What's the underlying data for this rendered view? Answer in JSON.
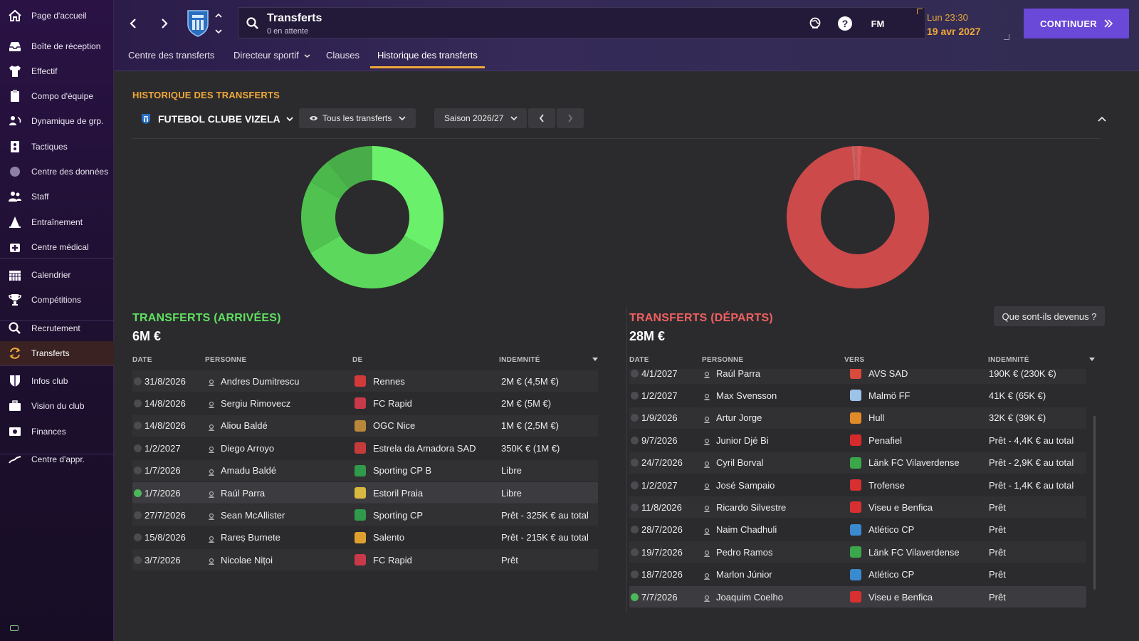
{
  "sidebar": {
    "items": [
      {
        "label": "Page d'accueil",
        "icon": "home-icon"
      },
      {
        "label": "Boîte de réception",
        "icon": "inbox-icon"
      },
      {
        "label": "Effectif",
        "icon": "shirt-icon"
      },
      {
        "label": "Compo d'équipe",
        "icon": "clipboard-icon"
      },
      {
        "label": "Dynamique de grp.",
        "icon": "people-cycle-icon"
      },
      {
        "label": "Tactiques",
        "icon": "tactics-icon"
      },
      {
        "label": "Centre des données",
        "icon": "data-icon"
      },
      {
        "label": "Staff",
        "icon": "staff-icon"
      },
      {
        "label": "Entraînement",
        "icon": "cone-icon"
      },
      {
        "label": "Centre médical",
        "icon": "medical-icon"
      },
      {
        "label": "Calendrier",
        "icon": "calendar-icon"
      },
      {
        "label": "Compétitions",
        "icon": "trophy-icon"
      },
      {
        "label": "Recrutement",
        "icon": "search-icon"
      },
      {
        "label": "Transferts",
        "icon": "transfer-icon"
      },
      {
        "label": "Infos club",
        "icon": "shield-icon"
      },
      {
        "label": "Vision du club",
        "icon": "briefcase-icon"
      },
      {
        "label": "Finances",
        "icon": "money-icon"
      },
      {
        "label": "Centre d'appr.",
        "icon": "graph-icon"
      }
    ]
  },
  "header": {
    "search_title": "Transferts",
    "search_sub": "0 en attente",
    "fm_label": "FM",
    "time": "Lun 23:30",
    "date": "19 avr 2027",
    "continue_label": "CONTINUER",
    "tabs": [
      "Centre des transferts",
      "Directeur sportif",
      "Clauses",
      "Historique des transferts"
    ]
  },
  "main": {
    "section_title": "HISTORIQUE DES TRANSFERTS",
    "club_name": "FUTEBOL CLUBE VIZELA",
    "filter_label": "Tous les transferts",
    "season_label": "Saison 2026/27",
    "what_became_label": "Que sont-ils devenus ?"
  },
  "arrivals": {
    "title": "TRANSFERTS (ARRIVÉES)",
    "total": "6M €",
    "headers": [
      "DATE",
      "PERSONNE",
      "DE",
      "INDEMNITÉ"
    ],
    "rows": [
      {
        "date": "31/8/2026",
        "person": "Andres Dumitrescu",
        "club": "Rennes",
        "fee": "2M € (4,5M €)",
        "crest": "#d23a3a"
      },
      {
        "date": "14/8/2026",
        "person": "Sergiu Rimovecz",
        "club": "FC Rapid",
        "fee": "2M € (5M €)",
        "crest": "#c8394a"
      },
      {
        "date": "14/8/2026",
        "person": "Aliou Baldé",
        "club": "OGC Nice",
        "fee": "1M € (2,5M €)",
        "crest": "#b8873a"
      },
      {
        "date": "1/2/2027",
        "person": "Diego Arroyo",
        "club": "Estrela da Amadora SAD",
        "fee": "350K € (1M €)",
        "crest": "#c43b3b"
      },
      {
        "date": "1/7/2026",
        "person": "Amadu Baldé",
        "club": "Sporting CP B",
        "fee": "Libre",
        "crest": "#2f9a4a"
      },
      {
        "date": "1/7/2026",
        "person": "Raúl Parra",
        "club": "Estoril Praia",
        "fee": "Libre",
        "crest": "#d8b840"
      },
      {
        "date": "27/7/2026",
        "person": "Sean McAllister",
        "club": "Sporting CP",
        "fee": "Prêt - 325K € au total",
        "crest": "#2f9a4a"
      },
      {
        "date": "15/8/2026",
        "person": "Rareș Burnete",
        "club": "Salento",
        "fee": "Prêt - 215K € au total",
        "crest": "#e0a030"
      },
      {
        "date": "3/7/2026",
        "person": "Nicolae Nițoi",
        "club": "FC Rapid",
        "fee": "Prêt",
        "crest": "#c8394a"
      }
    ],
    "selected_index": 5
  },
  "departures": {
    "title": "TRANSFERTS (DÉPARTS)",
    "total": "28M €",
    "headers": [
      "DATE",
      "PERSONNE",
      "VERS",
      "INDEMNITÉ"
    ],
    "rows": [
      {
        "date": "4/1/2027",
        "person": "Raúl Parra",
        "club": "AVS SAD",
        "fee": "190K € (230K €)",
        "crest": "#d84a3a"
      },
      {
        "date": "1/2/2027",
        "person": "Max Svensson",
        "club": "Malmö FF",
        "fee": "41K € (65K €)",
        "crest": "#9cc4e8"
      },
      {
        "date": "1/9/2026",
        "person": "Artur Jorge",
        "club": "Hull",
        "fee": "32K € (39K €)",
        "crest": "#e08a28"
      },
      {
        "date": "9/7/2026",
        "person": "Junior Djé Bi",
        "club": "Penafiel",
        "fee": "Prêt - 4,4K € au total",
        "crest": "#d82a2a"
      },
      {
        "date": "24/7/2026",
        "person": "Cyril Borval",
        "club": "Länk FC Vilaverdense",
        "fee": "Prêt - 2,9K € au total",
        "crest": "#3aa84a"
      },
      {
        "date": "1/2/2027",
        "person": "José Sampaio",
        "club": "Trofense",
        "fee": "Prêt - 1,4K € au total",
        "crest": "#d83030"
      },
      {
        "date": "11/8/2026",
        "person": "Ricardo Silvestre",
        "club": "Viseu e Benfica",
        "fee": "Prêt",
        "crest": "#d83030"
      },
      {
        "date": "28/7/2026",
        "person": "Naim Chadhuli",
        "club": "Atlético CP",
        "fee": "Prêt",
        "crest": "#3a8ad0"
      },
      {
        "date": "19/7/2026",
        "person": "Pedro Ramos",
        "club": "Länk FC Vilaverdense",
        "fee": "Prêt",
        "crest": "#3aa84a"
      },
      {
        "date": "18/7/2026",
        "person": "Marlon Júnior",
        "club": "Atlético CP",
        "fee": "Prêt",
        "crest": "#3a8ad0"
      },
      {
        "date": "7/7/2026",
        "person": "Joaquim Coelho",
        "club": "Viseu e Benfica",
        "fee": "Prêt",
        "crest": "#d83030"
      }
    ],
    "selected_index": 10
  },
  "chart_data": [
    {
      "type": "pie",
      "colors": [
        "#6af06a",
        "#5cd95c",
        "#4fc24f",
        "#4bb84b",
        "#48ad48"
      ],
      "values": [
        2,
        2,
        1,
        0.35,
        0.65
      ]
    },
    {
      "type": "pie",
      "colors": [
        "#e05a5a",
        "#d85252",
        "#cc4a4a",
        "#d06060",
        "#c85858"
      ],
      "values": [
        0.2,
        0.1,
        27.3,
        0.2,
        0.2
      ]
    }
  ],
  "colors": {
    "accent": "#f0a838",
    "arrivals": "#5fe05f",
    "departures": "#f06060",
    "continue": "#6a48d8"
  }
}
